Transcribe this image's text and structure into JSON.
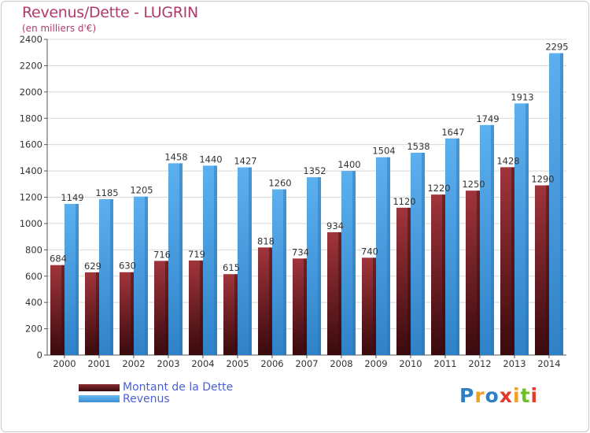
{
  "header": {
    "title": "Revenus/Dette - LUGRIN",
    "subtitle": "(en milliers d'€)"
  },
  "chart_data": {
    "type": "bar",
    "title": "Revenus/Dette - LUGRIN",
    "subtitle": "(en milliers d'€)",
    "xlabel": "",
    "ylabel": "",
    "ylim": [
      0,
      2400
    ],
    "yticks": [
      0,
      200,
      400,
      600,
      800,
      1000,
      1200,
      1400,
      1600,
      1800,
      2000,
      2200,
      2400
    ],
    "grid": true,
    "legend_position": "bottom-left",
    "categories": [
      "2000",
      "2001",
      "2002",
      "2003",
      "2004",
      "2005",
      "2006",
      "2007",
      "2008",
      "2009",
      "2010",
      "2011",
      "2012",
      "2013",
      "2014"
    ],
    "series": [
      {
        "name": "Montant de la Dette",
        "color": "#7a1f24",
        "values": [
          684,
          629,
          630,
          716,
          719,
          615,
          818,
          734,
          934,
          740,
          1120,
          1220,
          1250,
          1428,
          1290
        ],
        "labels": [
          "684",
          "629",
          "630",
          "716",
          "719",
          "615",
          "818",
          "734",
          "934",
          "740",
          "1120",
          "1220",
          "1250",
          "1428",
          "1290"
        ]
      },
      {
        "name": "Revenus",
        "color": "#4ea3e3",
        "values": [
          1149,
          1185,
          1205,
          1458,
          1440,
          1427,
          1260,
          1352,
          1400,
          1504,
          1538,
          1647,
          1749,
          1913,
          2295
        ],
        "labels": [
          "1149",
          "1185",
          "1205",
          "1458",
          "1440",
          "1427",
          "1260",
          "1352",
          "1400",
          "1504",
          "1538",
          "1647",
          "1749",
          "1913",
          "2295"
        ]
      }
    ]
  },
  "legend": {
    "items": [
      {
        "label": "Montant de la Dette",
        "color": "#6b1a1f"
      },
      {
        "label": "Revenus",
        "color": "#4ea3e3"
      }
    ]
  },
  "logo": {
    "letters": [
      "P",
      "r",
      "o",
      "x",
      "i",
      "t",
      "i"
    ],
    "colors": [
      "#2d7fc2",
      "#f0a020",
      "#2d7fc2",
      "#e33a2a",
      "#f0a020",
      "#6cbf2a",
      "#e33a2a"
    ]
  }
}
